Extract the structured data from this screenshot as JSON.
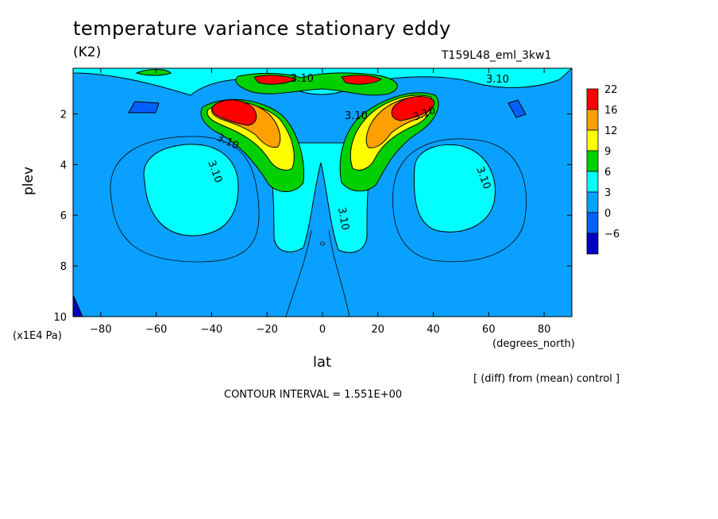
{
  "chart_data": {
    "type": "heatmap",
    "title": "temperature variance stationary eddy",
    "units_label": "(K2)",
    "run_id": "T159L48_eml_3kw1",
    "xlabel": "lat",
    "x_units": "(degrees_north)",
    "ylabel": "plev",
    "y_units": "(x1E4 Pa)",
    "xlim": [
      -90,
      90
    ],
    "ylim": [
      10,
      0.2
    ],
    "x_ticks": [
      -80,
      -60,
      -40,
      -20,
      0,
      20,
      40,
      60,
      80
    ],
    "y_ticks": [
      2,
      4,
      6,
      8,
      10
    ],
    "colorbar": {
      "levels": [
        22,
        16,
        12,
        9,
        6,
        3,
        0,
        -6
      ],
      "colors": [
        "#ff0000",
        "#ffa000",
        "#ffff00",
        "#00d000",
        "#00ffff",
        "#0aa0ff",
        "#0060ff",
        "#0000c0"
      ]
    },
    "contour_labels": [
      "3.10",
      "3.10",
      "3.10",
      "3.10",
      "3.10",
      "3.10",
      "3.10",
      "3.10"
    ],
    "contour_interval": "CONTOUR INTERVAL = 1.551E+00",
    "note": "[ (diff) from (mean) control ]"
  }
}
